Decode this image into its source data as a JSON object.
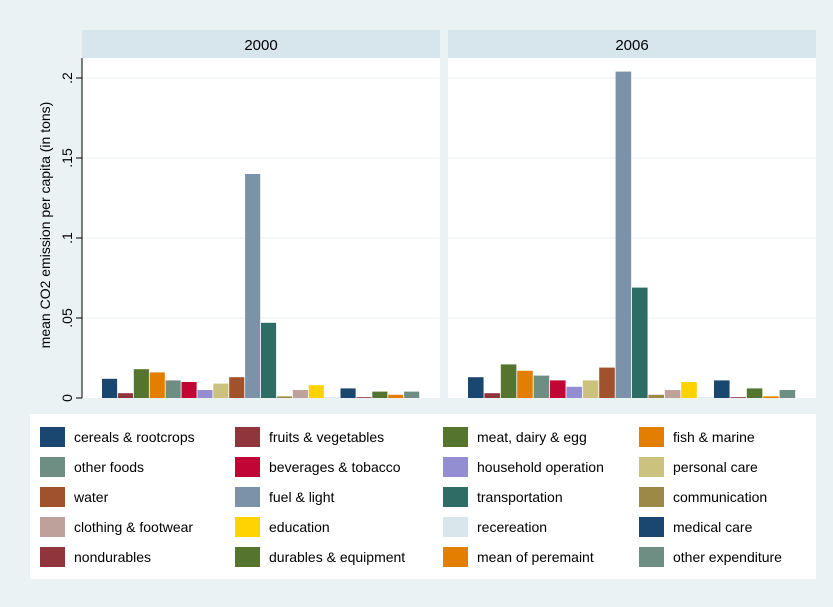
{
  "chart_data": {
    "type": "bar",
    "ylabel": "mean CO2 emission per capita (in tons)",
    "ylim": [
      0,
      0.22
    ],
    "yticks": [
      {
        "value": 0,
        "label": "0"
      },
      {
        "value": 0.05,
        "label": ".05"
      },
      {
        "value": 0.1,
        "label": ".1"
      },
      {
        "value": 0.15,
        "label": ".15"
      },
      {
        "value": 0.2,
        "label": ".2"
      }
    ],
    "grid": true,
    "legend_position": "bottom",
    "categories": [
      "cereals & rootcrops",
      "fruits & vegetables",
      "meat, dairy & egg",
      "fish & marine",
      "other foods",
      "beverages & tobacco",
      "household operation",
      "personal care",
      "water",
      "fuel & light",
      "transportation",
      "communication",
      "clothing & footwear",
      "education",
      "recereation",
      "medical care",
      "nondurables",
      "durables & equipment",
      "mean of peremaint",
      "other expenditure"
    ],
    "colors": [
      "#1a476f",
      "#90353b",
      "#55752f",
      "#e37e00",
      "#6e8e84",
      "#c10534",
      "#938dd2",
      "#cac27e",
      "#a0522d",
      "#7b92a8",
      "#2d6d66",
      "#9c8847",
      "#bfa19c",
      "#ffd200",
      "#d9e6eb",
      "#1a476f",
      "#90353b",
      "#55752f",
      "#e37e00",
      "#6e8e84"
    ],
    "panels": [
      {
        "title": "2000",
        "values": [
          0.012,
          0.003,
          0.018,
          0.016,
          0.011,
          0.01,
          0.005,
          0.009,
          0.013,
          0.14,
          0.047,
          0.001,
          0.005,
          0.008,
          0.0005,
          0.006,
          0.0005,
          0.004,
          0.002,
          0.004
        ]
      },
      {
        "title": "2006",
        "values": [
          0.013,
          0.003,
          0.021,
          0.017,
          0.014,
          0.011,
          0.007,
          0.011,
          0.019,
          0.204,
          0.069,
          0.002,
          0.005,
          0.01,
          0.0005,
          0.011,
          0.0005,
          0.006,
          0.001,
          0.005
        ]
      }
    ]
  }
}
